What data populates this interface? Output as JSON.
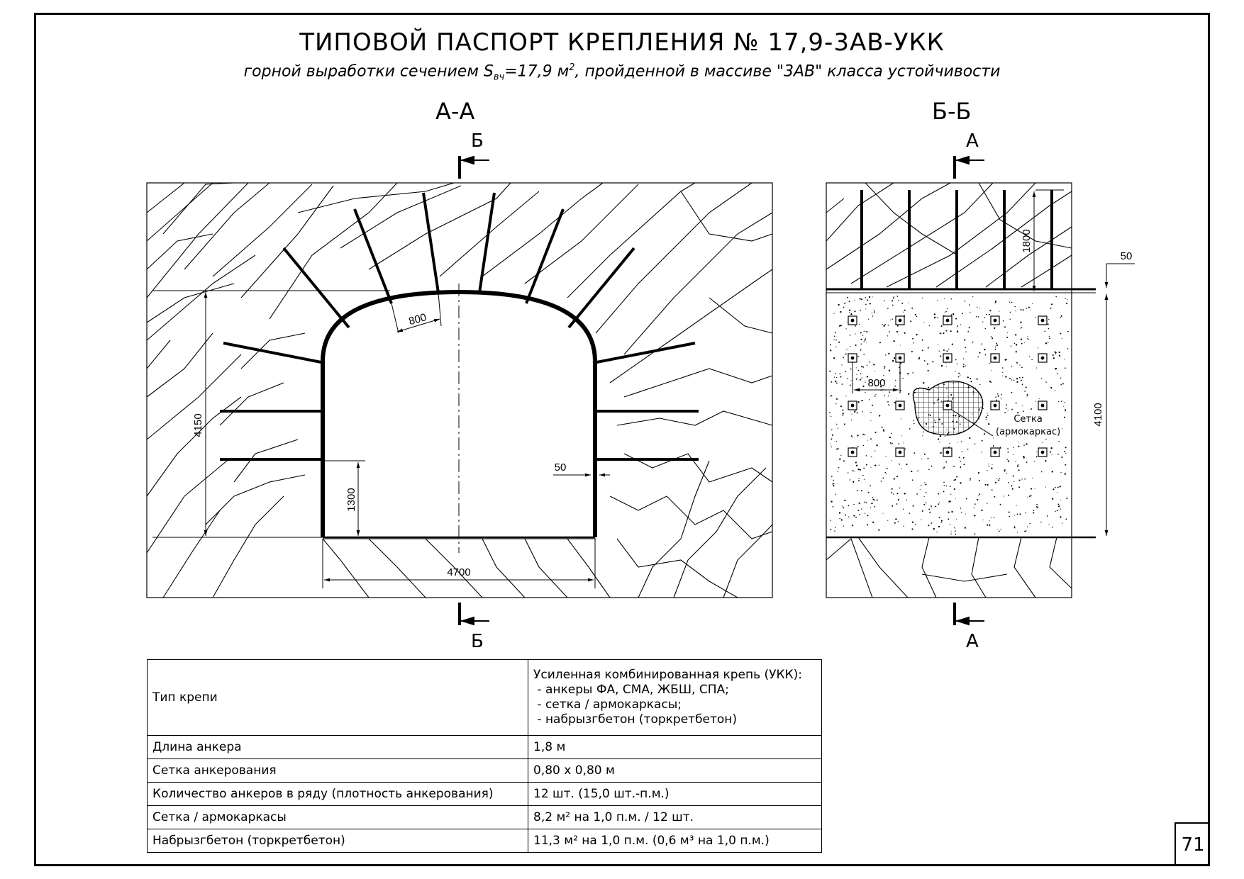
{
  "title": "ТИПОВОЙ ПАСПОРТ КРЕПЛЕНИЯ № 17,9-3АВ-УКК",
  "subtitle": {
    "prefix": "горной выработки сечением S",
    "subscript": "вч",
    "value": "=17,9 м",
    "superscript": "2",
    "suffix": ", пройденной в массиве \"3АВ\" класса устойчивости"
  },
  "section_aa": {
    "label": "А-А",
    "cut_letter_top": "Б",
    "cut_letter_bottom": "Б",
    "dims": {
      "bolt_spacing": "800",
      "height_total": "4150",
      "wall_height": "1300",
      "width": "4700",
      "lining_thickness": "50"
    }
  },
  "section_bb": {
    "label": "Б-Б",
    "cut_letter_top": "А",
    "cut_letter_bottom": "А",
    "dims": {
      "bolt_length": "1800",
      "shotcrete_thickness": "50",
      "height": "4100",
      "bolt_spacing": "800"
    },
    "mesh_label_line1": "Сетка",
    "mesh_label_line2": "(армокаркас)"
  },
  "spec_table": {
    "rows": [
      {
        "name": "Тип крепи",
        "value_lines": [
          "Усиленная комбинированная крепь (УКК):",
          " - анкеры ФА, СМА, ЖБШ, СПА;",
          " - сетка / армокаркасы;",
          " - набрызгбетон (торкретбетон)"
        ]
      },
      {
        "name": "Длина анкера",
        "value": "1,8 м"
      },
      {
        "name": "Сетка анкерования",
        "value": "0,80 х 0,80 м"
      },
      {
        "name": "Количество анкеров в ряду (плотность анкерования)",
        "value": "12 шт. (15,0 шт.-п.м.)"
      },
      {
        "name": "Сетка / армокаркасы",
        "value": "8,2 м² на 1,0 п.м.  / 12 шт."
      },
      {
        "name": "Набрызгбетон (торкретбетон)",
        "value": "11,3 м² на 1,0 п.м. (0,6 м³ на 1,0 п.м.)"
      }
    ]
  },
  "page_number": "71"
}
